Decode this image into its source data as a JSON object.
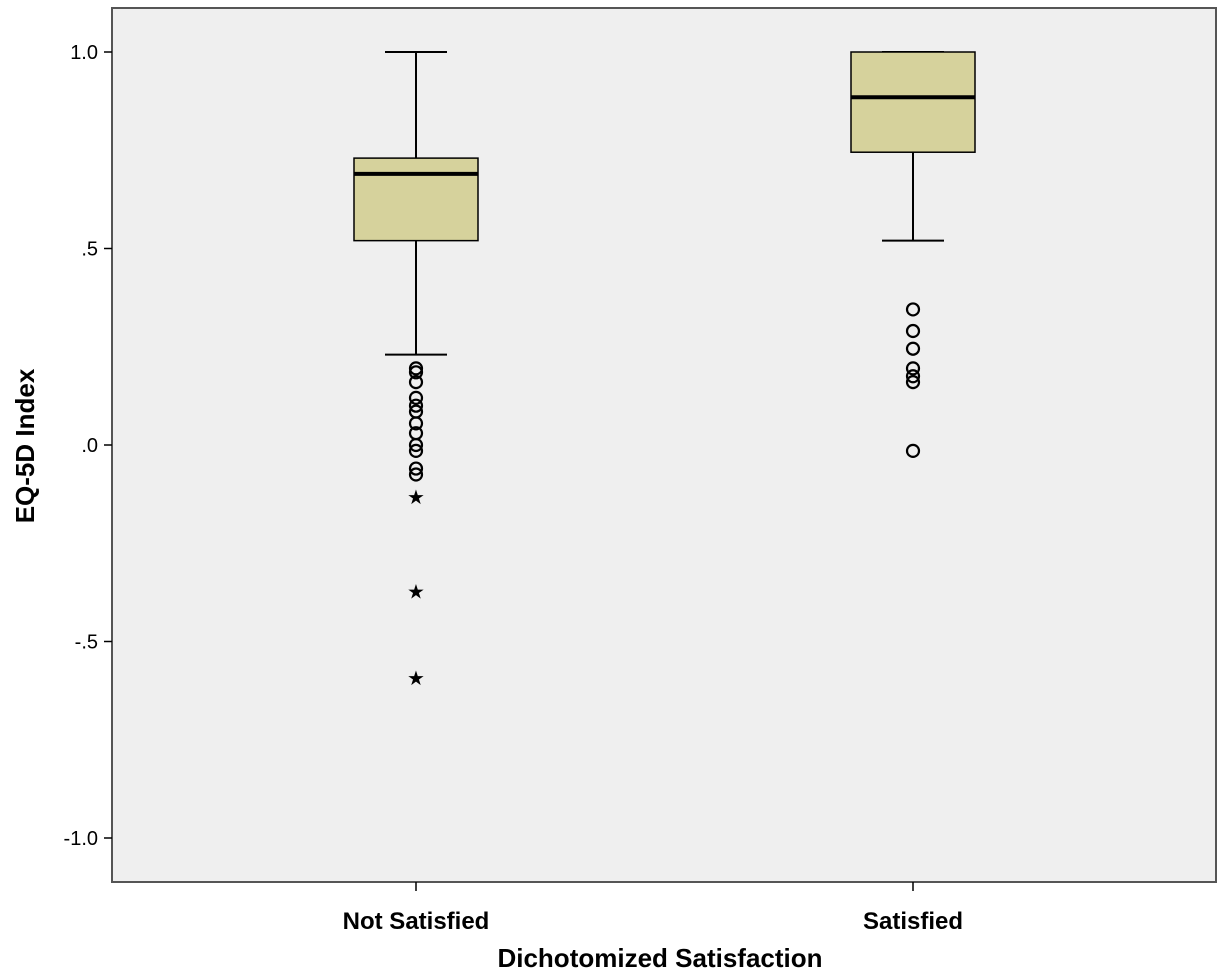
{
  "colors": {
    "plot_background": "#efefef",
    "box_fill": "#d6d29c",
    "stroke": "#000000"
  },
  "chart_data": {
    "type": "boxplot",
    "xlabel": "Dichotomized Satisfaction",
    "ylabel": "EQ-5D Index",
    "ylim": [
      -1.1,
      1.11
    ],
    "grid": false,
    "yticks": [
      {
        "value": 1.0,
        "label": "1.0"
      },
      {
        "value": 0.5,
        "label": ".5"
      },
      {
        "value": 0.0,
        "label": ".0"
      },
      {
        "value": -0.5,
        "label": "-.5"
      },
      {
        "value": -1.0,
        "label": "-1.0"
      }
    ],
    "categories": [
      "Not Satisfied",
      "Satisfied"
    ],
    "boxes": [
      {
        "category": "Not Satisfied",
        "whisker_low": 0.23,
        "q1": 0.52,
        "median": 0.69,
        "q3": 0.73,
        "whisker_high": 1.0,
        "outliers": [
          0.195,
          0.185,
          0.16,
          0.12,
          0.1,
          0.085,
          0.055,
          0.03,
          0.0,
          -0.015,
          -0.06,
          -0.075
        ],
        "extremes": [
          -0.13,
          -0.37,
          -0.59
        ]
      },
      {
        "category": "Satisfied",
        "whisker_low": 0.52,
        "q1": 0.745,
        "median": 0.885,
        "q3": 1.0,
        "whisker_high": 1.0,
        "outliers": [
          0.345,
          0.29,
          0.245,
          0.195,
          0.175,
          0.16,
          -0.015
        ],
        "extremes": []
      }
    ]
  }
}
